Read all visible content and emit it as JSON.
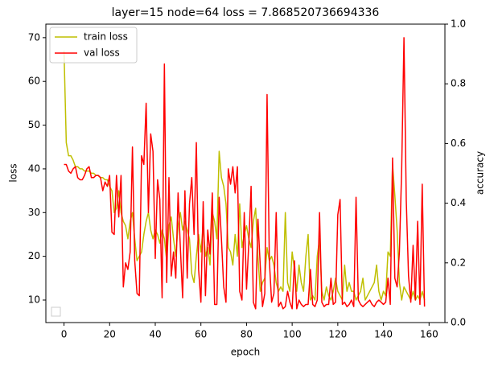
{
  "chart_data": {
    "type": "line",
    "title": "layer=15 node=64 loss = 7.868520736694336",
    "x_label": "epoch",
    "y_label": "loss",
    "y2_label": "accuracy",
    "x": [
      0,
      1,
      2,
      3,
      4,
      5,
      6,
      7,
      8,
      9,
      10,
      11,
      12,
      13,
      14,
      15,
      16,
      17,
      18,
      19,
      20,
      21,
      22,
      23,
      24,
      25,
      26,
      27,
      28,
      29,
      30,
      31,
      32,
      33,
      34,
      35,
      36,
      37,
      38,
      39,
      40,
      41,
      42,
      43,
      44,
      45,
      46,
      47,
      48,
      49,
      50,
      51,
      52,
      53,
      54,
      55,
      56,
      57,
      58,
      59,
      60,
      61,
      62,
      63,
      64,
      65,
      66,
      67,
      68,
      69,
      70,
      71,
      72,
      73,
      74,
      75,
      76,
      77,
      78,
      79,
      80,
      81,
      82,
      83,
      84,
      85,
      86,
      87,
      88,
      89,
      90,
      91,
      92,
      93,
      94,
      95,
      96,
      97,
      98,
      99,
      100,
      101,
      102,
      103,
      104,
      105,
      106,
      107,
      108,
      109,
      110,
      111,
      112,
      113,
      114,
      115,
      116,
      117,
      118,
      119,
      120,
      121,
      122,
      123,
      124,
      125,
      126,
      127,
      128,
      129,
      130,
      131,
      132,
      133,
      134,
      135,
      136,
      137,
      138,
      139,
      140,
      141,
      142,
      143,
      144,
      145,
      146,
      147,
      148,
      149,
      150,
      151,
      152,
      153,
      154,
      155,
      156,
      157,
      158
    ],
    "series": [
      {
        "name": "train loss",
        "color": "#bfbf00",
        "values": [
          67,
          46,
          43,
          43,
          42,
          40.5,
          40.5,
          40,
          40,
          39.5,
          39.5,
          39.5,
          39,
          39,
          38.5,
          38.5,
          38,
          38,
          37.5,
          37.5,
          36,
          35,
          30,
          31,
          35,
          30,
          28,
          27,
          24,
          28,
          30,
          24,
          19,
          20,
          21,
          25,
          28,
          30,
          26,
          24,
          26,
          25,
          23,
          26,
          24,
          19,
          27,
          29,
          24,
          20,
          27,
          30,
          26,
          28,
          26,
          24,
          16,
          14,
          20,
          25,
          21,
          27,
          20,
          22,
          18,
          30,
          28,
          24,
          44,
          38,
          36,
          32,
          22,
          21,
          18,
          25,
          20,
          32,
          22,
          25,
          27,
          24,
          22,
          28,
          31,
          20,
          12,
          14,
          15,
          22,
          19,
          20,
          18,
          14,
          12,
          13,
          12,
          30,
          14,
          12,
          21,
          17,
          12,
          18,
          14,
          12,
          20,
          25,
          10,
          11,
          10,
          20,
          24,
          12,
          10,
          13,
          11,
          10,
          12,
          15,
          12,
          11,
          10,
          18,
          12,
          14,
          12,
          12,
          10,
          11,
          12,
          15,
          10,
          11,
          12,
          13,
          14,
          18,
          12,
          10,
          12,
          11,
          21,
          20,
          41,
          34,
          26,
          14,
          10,
          13,
          12,
          11,
          10,
          12,
          10,
          11,
          10,
          12,
          10
        ]
      },
      {
        "name": "val loss",
        "color": "#ff0000",
        "values": [
          41,
          41,
          39.5,
          39,
          40,
          40.5,
          38,
          37.5,
          37.5,
          38.5,
          40,
          40.5,
          38,
          38,
          38.5,
          38.5,
          38,
          35,
          37,
          36,
          38.5,
          25.5,
          25,
          38.5,
          29,
          38.5,
          13,
          18.5,
          17,
          21,
          45,
          19,
          11.5,
          11,
          43,
          41,
          55,
          30,
          48,
          44,
          19.5,
          37.5,
          33,
          10.5,
          64,
          14,
          38,
          15.5,
          21,
          15,
          34.5,
          22,
          10.5,
          35,
          15,
          32,
          38,
          25,
          46,
          17,
          9.5,
          32.5,
          11,
          26,
          20.5,
          34.5,
          9,
          9,
          33.5,
          24,
          13,
          9.5,
          40,
          36.5,
          40.5,
          34.5,
          40.5,
          12,
          10,
          30,
          12.5,
          23,
          36,
          9.5,
          8,
          28.5,
          18,
          8.5,
          11.5,
          57,
          19,
          9.5,
          11.5,
          30,
          8.5,
          9.5,
          8,
          8.5,
          12,
          9.5,
          8,
          19,
          8,
          10,
          9,
          8.5,
          9,
          9,
          17,
          9,
          8.5,
          10,
          30,
          9.5,
          8.5,
          9,
          9,
          15,
          9,
          9.5,
          29.5,
          33,
          9,
          9.5,
          8.5,
          9,
          10,
          8.5,
          33.5,
          10,
          9,
          8.5,
          9,
          9.5,
          10,
          9,
          8.5,
          9.5,
          10,
          9.5,
          9,
          9.5,
          15,
          9,
          42.5,
          15,
          13,
          21,
          40,
          70,
          33,
          15.5,
          9.5,
          22.5,
          10,
          28,
          9,
          36.5,
          8.5
        ]
      }
    ],
    "xlim": [
      -7.95,
      166.95
    ],
    "xticks": [
      0,
      20,
      40,
      60,
      80,
      100,
      120,
      140,
      160
    ],
    "ylim": [
      4.85,
      73.1
    ],
    "yticks": [
      10,
      20,
      30,
      40,
      50,
      60,
      70
    ],
    "y2lim": [
      0,
      1
    ],
    "y2ticks": [
      {
        "value": 0,
        "label": "0.0"
      },
      {
        "value": 0.2,
        "label": "0.2"
      },
      {
        "value": 0.4,
        "label": "0.4"
      },
      {
        "value": 0.6,
        "label": "0.6"
      },
      {
        "value": 0.8,
        "label": "0.8"
      },
      {
        "value": 1,
        "label": "1.0"
      }
    ],
    "grid": false,
    "legend": "upper left"
  }
}
